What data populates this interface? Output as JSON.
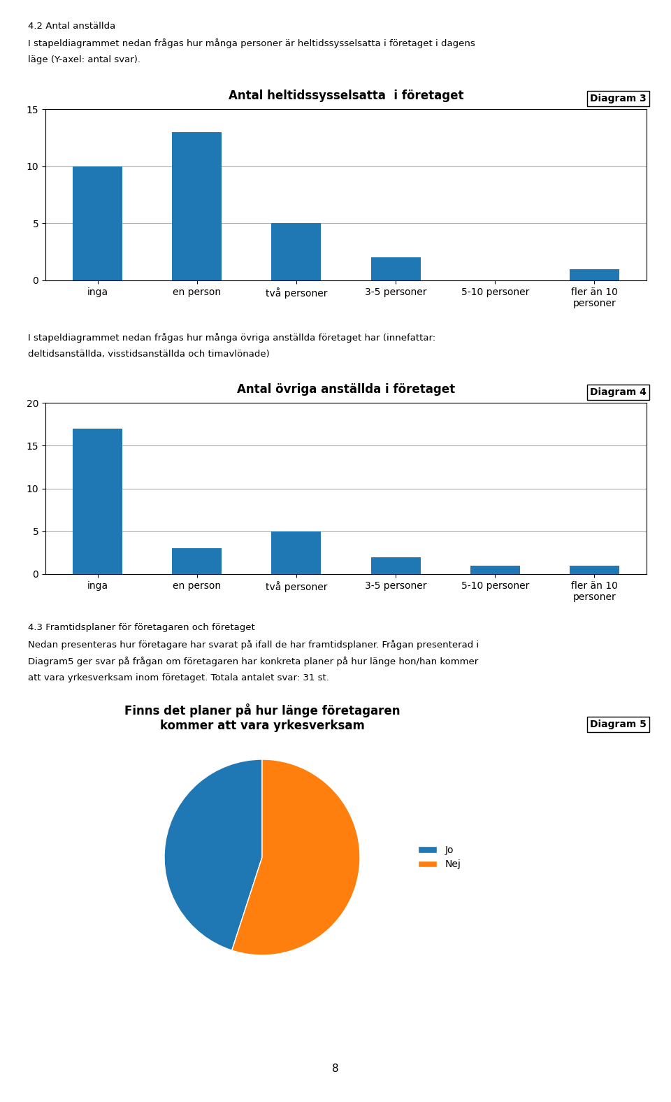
{
  "chart_data": [
    {
      "type": "bar",
      "title": "Antal heltidssysselsatta  i företaget",
      "subtitle": "Diagram 3",
      "annotations": [
        "4.2 Antal anställda",
        "I stapeldiagrammet nedan frågas hur många personer är heltidssysselsatta i företaget i dagens",
        "läge (Y-axel: antal svar)."
      ],
      "categories": [
        "inga",
        "en person",
        "två personer",
        "3-5 personer",
        "5-10 personer",
        "fler än 10\npersoner"
      ],
      "values": [
        10,
        13,
        5,
        2,
        0,
        1
      ],
      "ylim": [
        0,
        15
      ],
      "yticks": [
        0,
        5,
        10,
        15
      ],
      "grid": true
    },
    {
      "type": "bar",
      "title": "Antal övriga anställda i företaget",
      "subtitle": "Diagram 4",
      "annotations": [
        "I stapeldiagrammet nedan frågas hur många övriga anställda företaget har (innefattar:",
        "deltidsanställda, visstidsanställda och timavlönade)"
      ],
      "categories": [
        "inga",
        "en person",
        "två personer",
        "3-5 personer",
        "5-10 personer",
        "fler än 10\npersoner"
      ],
      "values": [
        17,
        3,
        5,
        2,
        1,
        1
      ],
      "ylim": [
        0,
        20
      ],
      "yticks": [
        0,
        5,
        10,
        15,
        20
      ],
      "grid": true
    },
    {
      "type": "pie",
      "title": "Finns det planer på hur länge företagaren\nkommer att vara yrkesverksam",
      "subtitle": "Diagram 5",
      "annotations": [
        "4.3 Framtidsplaner för företagaren och företaget",
        "Nedan presenteras hur företagare har svarat på ifall de har framtidsplaner. Frågan presenterad i",
        "Diagram5 ger svar på frågan om företagaren har konkreta planer på hur länge hon/han kommer",
        "att vara yrkesverksam inom företaget. Totala antalet svar: 31 st."
      ],
      "categories": [
        "Jo",
        "Nej"
      ],
      "values": [
        45,
        55
      ],
      "legend": "center left"
    }
  ],
  "annotations": [
    "8"
  ]
}
